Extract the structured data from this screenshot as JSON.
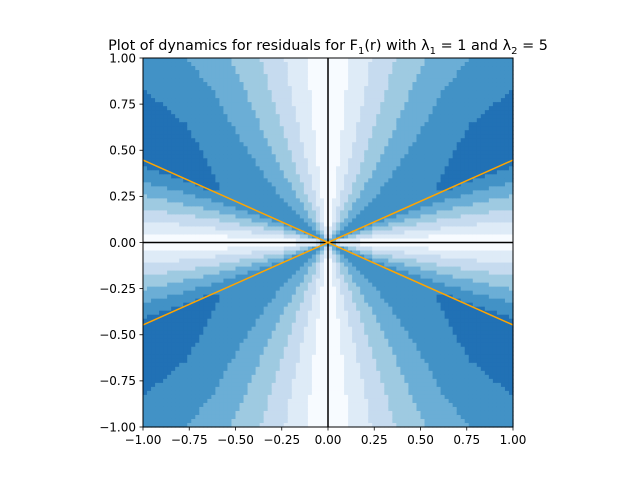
{
  "chart_data": {
    "type": "heatmap",
    "title": {
      "prefix": "Plot of dynamics for residuals for F",
      "sub1": "1",
      "middle1": "(r) with λ",
      "sub2": "1",
      "middle2": " = 1 and λ",
      "sub3": "2",
      "suffix": " = 5"
    },
    "xlabel": "",
    "ylabel": "",
    "xlim": [
      -1.0,
      1.0
    ],
    "ylim": [
      -1.0,
      1.0
    ],
    "x_ticks": [
      -1.0,
      -0.75,
      -0.5,
      -0.25,
      0.0,
      0.25,
      0.5,
      0.75,
      1.0
    ],
    "y_ticks": [
      -1.0,
      -0.75,
      -0.5,
      -0.25,
      0.0,
      0.25,
      0.5,
      0.75,
      1.0
    ],
    "x_tick_labels": [
      "−1.00",
      "−0.75",
      "−0.50",
      "−0.25",
      "0.00",
      "0.25",
      "0.50",
      "0.75",
      "1.00"
    ],
    "y_tick_labels": [
      "−1.00",
      "−0.75",
      "−0.50",
      "−0.25",
      "0.00",
      "0.25",
      "0.50",
      "0.75",
      "1.00"
    ],
    "grid": false,
    "colormap": [
      "#f7fbff",
      "#deebf7",
      "#c6dbef",
      "#9ecae1",
      "#6baed6",
      "#4292c6",
      "#2171b5"
    ],
    "field_peak_slope": 0.45,
    "axis_lines": {
      "x": 0.0,
      "y": 0.0,
      "color": "#000000"
    },
    "series": [
      {
        "values": [
          [
            -1.0,
            0.447
          ],
          [
            1.0,
            -0.447
          ]
        ],
        "color": "#ffa500"
      },
      {
        "values": [
          [
            -1.0,
            -0.447
          ],
          [
            1.0,
            0.447
          ]
        ],
        "color": "#ffa500"
      }
    ]
  }
}
